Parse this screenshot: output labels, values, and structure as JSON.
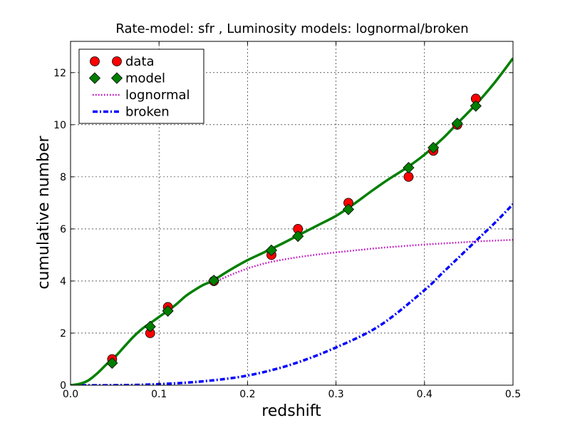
{
  "chart_data": {
    "type": "line",
    "title": "Rate-model: sfr , Luminosity models: lognormal/broken",
    "xlabel": "redshift",
    "ylabel": "cumulative number",
    "xlim": [
      0.0,
      0.5
    ],
    "ylim": [
      0,
      13.2
    ],
    "xticks": [
      0.0,
      0.1,
      0.2,
      0.3,
      0.4,
      0.5
    ],
    "xtick_labels": [
      "0.0",
      "0.1",
      "0.2",
      "0.3",
      "0.4",
      "0.5"
    ],
    "yticks": [
      0,
      2,
      4,
      6,
      8,
      10,
      12
    ],
    "ytick_labels": [
      "0",
      "2",
      "4",
      "6",
      "8",
      "10",
      "12"
    ],
    "grid": true,
    "legend_position": "top-left",
    "series": [
      {
        "name": "data",
        "kind": "markers",
        "marker": "circle",
        "color": "#ff0000",
        "x": [
          0.047,
          0.09,
          0.11,
          0.162,
          0.227,
          0.257,
          0.314,
          0.382,
          0.41,
          0.437,
          0.458
        ],
        "y": [
          1,
          2,
          3,
          4,
          5,
          6,
          7,
          8,
          9,
          10,
          11
        ]
      },
      {
        "name": "model",
        "kind": "markers",
        "marker": "diamond",
        "color": "#007f00",
        "x": [
          0.047,
          0.09,
          0.11,
          0.162,
          0.227,
          0.257,
          0.314,
          0.382,
          0.41,
          0.437,
          0.458
        ],
        "y": [
          0.85,
          2.25,
          2.85,
          4.02,
          5.18,
          5.72,
          6.75,
          8.35,
          9.12,
          10.05,
          10.72
        ]
      },
      {
        "name": "",
        "kind": "line",
        "style": "solid",
        "color": "#007f00",
        "x": [
          0.0,
          0.01,
          0.02,
          0.03,
          0.04,
          0.05,
          0.06,
          0.07,
          0.08,
          0.09,
          0.1,
          0.11,
          0.12,
          0.13,
          0.14,
          0.15,
          0.16,
          0.18,
          0.2,
          0.22,
          0.24,
          0.26,
          0.28,
          0.3,
          0.32,
          0.34,
          0.36,
          0.38,
          0.4,
          0.42,
          0.44,
          0.46,
          0.48,
          0.5
        ],
        "y": [
          0.0,
          0.05,
          0.18,
          0.45,
          0.78,
          1.08,
          1.45,
          1.82,
          2.14,
          2.38,
          2.62,
          2.86,
          3.12,
          3.42,
          3.65,
          3.85,
          4.0,
          4.42,
          4.8,
          5.12,
          5.45,
          5.8,
          6.15,
          6.5,
          6.95,
          7.45,
          7.92,
          8.35,
          8.85,
          9.45,
          10.15,
          10.85,
          11.65,
          12.55
        ]
      },
      {
        "name": "lognormal",
        "kind": "line",
        "style": "dotted",
        "color": "#bf00bf",
        "x": [
          0.16,
          0.18,
          0.2,
          0.22,
          0.24,
          0.26,
          0.28,
          0.3,
          0.32,
          0.34,
          0.36,
          0.38,
          0.4,
          0.42,
          0.44,
          0.46,
          0.48,
          0.5
        ],
        "y": [
          3.92,
          4.22,
          4.48,
          4.68,
          4.82,
          4.93,
          5.02,
          5.1,
          5.17,
          5.24,
          5.3,
          5.35,
          5.4,
          5.44,
          5.48,
          5.52,
          5.55,
          5.58
        ]
      },
      {
        "name": "broken",
        "kind": "line",
        "style": "dashdot",
        "color": "#0000ff",
        "x": [
          0.0,
          0.05,
          0.1,
          0.15,
          0.2,
          0.25,
          0.3,
          0.35,
          0.4,
          0.42,
          0.44,
          0.46,
          0.48,
          0.5
        ],
        "y": [
          0.0,
          0.0,
          0.04,
          0.15,
          0.37,
          0.8,
          1.45,
          2.3,
          3.65,
          4.3,
          4.95,
          5.6,
          6.25,
          6.95
        ]
      }
    ],
    "legend": [
      {
        "label": "data",
        "symbol": "circle",
        "color": "#ff0000"
      },
      {
        "label": "model",
        "symbol": "diamond",
        "color": "#007f00"
      },
      {
        "label": "lognormal",
        "symbol": "dotted",
        "color": "#bf00bf"
      },
      {
        "label": "broken",
        "symbol": "dashdot",
        "color": "#0000ff"
      }
    ]
  }
}
